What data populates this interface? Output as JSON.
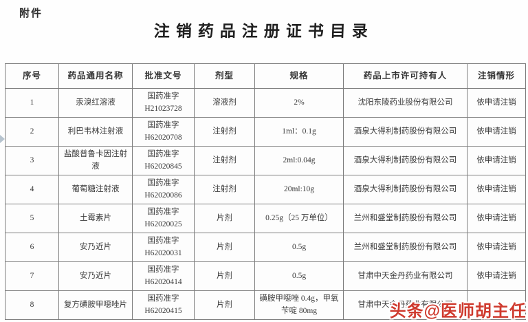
{
  "page": {
    "attachment_label": "附件",
    "title": "注销药品注册证书目录",
    "watermark": "头条@医师胡主任",
    "watermark_color": "#cf3a2e"
  },
  "table": {
    "headers": [
      "序号",
      "药品通用名称",
      "批准文号",
      "剂型",
      "规格",
      "药品上市许可持有人",
      "注销情形"
    ],
    "rows": [
      {
        "no": "1",
        "name": "汞溴红溶液",
        "approval_line1": "国药准字",
        "approval_line2": "H21023728",
        "form": "溶液剂",
        "spec": "2%",
        "holder": "沈阳东陵药业股份有限公司",
        "status": "依申请注销"
      },
      {
        "no": "2",
        "name": "利巴韦林注射液",
        "approval_line1": "国药准字",
        "approval_line2": "H62020708",
        "form": "注射剂",
        "spec": "1ml：0.1g",
        "holder": "酒泉大得利制药股份有限公司",
        "status": "依申请注销"
      },
      {
        "no": "3",
        "name": "盐酸普鲁卡因注射液",
        "approval_line1": "国药准字",
        "approval_line2": "H62020845",
        "form": "注射剂",
        "spec": "2ml:0.04g",
        "holder": "酒泉大得利制药股份有限公司",
        "status": "依申请注销"
      },
      {
        "no": "4",
        "name": "葡萄糖注射液",
        "approval_line1": "国药准字",
        "approval_line2": "H62020086",
        "form": "注射剂",
        "spec": "20ml:10g",
        "holder": "酒泉大得利制药股份有限公司",
        "status": "依申请注销"
      },
      {
        "no": "5",
        "name": "土霉素片",
        "approval_line1": "国药准字",
        "approval_line2": "H62020025",
        "form": "片剂",
        "spec": "0.25g（25 万单位）",
        "holder": "兰州和盛堂制药股份有限公司",
        "status": "依申请注销"
      },
      {
        "no": "6",
        "name": "安乃近片",
        "approval_line1": "国药准字",
        "approval_line2": "H62020031",
        "form": "片剂",
        "spec": "0.5g",
        "holder": "兰州和盛堂制药股份有限公司",
        "status": "依申请注销"
      },
      {
        "no": "7",
        "name": "安乃近片",
        "approval_line1": "国药准字",
        "approval_line2": "H62020414",
        "form": "片剂",
        "spec": "0.5g",
        "holder": "甘肃中天金丹药业有限公司",
        "status": "依申请注销"
      },
      {
        "no": "8",
        "name": "复方磺胺甲噁唑片",
        "approval_line1": "国药准字",
        "approval_line2": "H62020415",
        "form": "片剂",
        "spec": "磺胺甲噁唑 0.4g，甲氧苄啶 80mg",
        "holder": "甘肃中天金丹药业有限公司",
        "status": ""
      }
    ]
  }
}
